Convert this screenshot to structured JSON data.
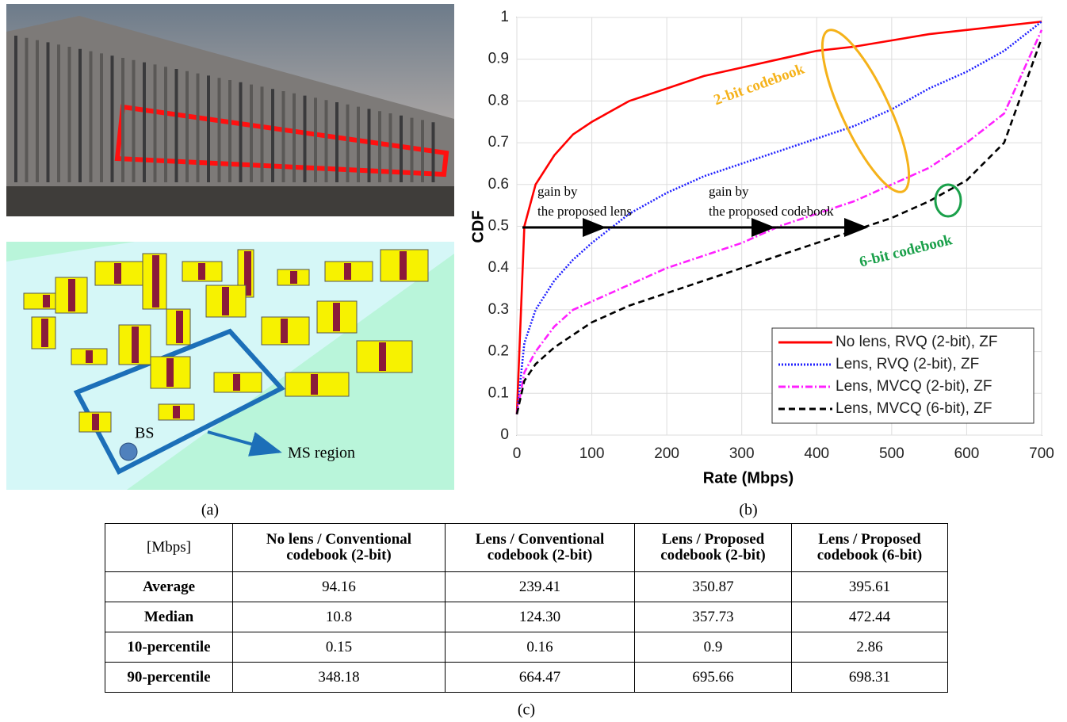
{
  "panel_a": {
    "bs_label": "BS",
    "ms_label": "MS region",
    "caption": "(a)"
  },
  "chart_data": {
    "type": "line",
    "caption": "(b)",
    "x_label": "Rate (Mbps)",
    "y_label": "CDF",
    "x": [
      0,
      10,
      25,
      50,
      75,
      100,
      150,
      200,
      250,
      300,
      350,
      400,
      450,
      500,
      550,
      600,
      650,
      700
    ],
    "series": [
      {
        "name": "No lens, RVQ (2-bit), ZF",
        "color": "#ff0000",
        "dash": "solid",
        "values": [
          0.05,
          0.5,
          0.6,
          0.67,
          0.72,
          0.75,
          0.8,
          0.83,
          0.86,
          0.88,
          0.9,
          0.92,
          0.93,
          0.945,
          0.96,
          0.97,
          0.98,
          0.99
        ]
      },
      {
        "name": "Lens, RVQ (2-bit), ZF",
        "color": "#2020ff",
        "dash": "dotted",
        "values": [
          0.05,
          0.22,
          0.3,
          0.37,
          0.42,
          0.46,
          0.53,
          0.58,
          0.62,
          0.65,
          0.68,
          0.71,
          0.74,
          0.78,
          0.83,
          0.87,
          0.92,
          0.99
        ]
      },
      {
        "name": "Lens, MVCQ (2-bit), ZF",
        "color": "#ff20ff",
        "dash": "dashdot",
        "values": [
          0.05,
          0.15,
          0.2,
          0.26,
          0.3,
          0.32,
          0.36,
          0.4,
          0.43,
          0.46,
          0.5,
          0.53,
          0.56,
          0.6,
          0.64,
          0.7,
          0.77,
          0.97
        ]
      },
      {
        "name": "Lens, MVCQ (6-bit), ZF",
        "color": "#000000",
        "dash": "dashed",
        "values": [
          0.05,
          0.13,
          0.17,
          0.21,
          0.24,
          0.27,
          0.31,
          0.34,
          0.37,
          0.4,
          0.43,
          0.46,
          0.49,
          0.52,
          0.56,
          0.61,
          0.7,
          0.95
        ]
      }
    ],
    "xlim": [
      0,
      700
    ],
    "xticks": [
      0,
      100,
      200,
      300,
      400,
      500,
      600,
      700
    ],
    "ylim": [
      0,
      1
    ],
    "yticks": [
      0,
      0.1,
      0.2,
      0.3,
      0.4,
      0.5,
      0.6,
      0.7,
      0.8,
      0.9,
      1
    ],
    "grid": true,
    "legend": "lower right",
    "annotations": [
      "gain by",
      "the proposed lens",
      "gain by",
      "the proposed codebook",
      "2-bit codebook",
      "6-bit codebook"
    ]
  },
  "table": {
    "caption": "(c)",
    "header": [
      "[Mbps]",
      "No lens / Conventional codebook (2-bit)",
      "Lens / Conventional codebook (2-bit)",
      "Lens / Proposed codebook (2-bit)",
      "Lens / Proposed codebook (6-bit)"
    ],
    "rows": [
      [
        "Average",
        "94.16",
        "239.41",
        "350.87",
        "395.61"
      ],
      [
        "Median",
        "10.8",
        "124.30",
        "357.73",
        "472.44"
      ],
      [
        "10-percentile",
        "0.15",
        "0.16",
        "0.9",
        "2.86"
      ],
      [
        "90-percentile",
        "348.18",
        "664.47",
        "695.66",
        "698.31"
      ]
    ]
  }
}
